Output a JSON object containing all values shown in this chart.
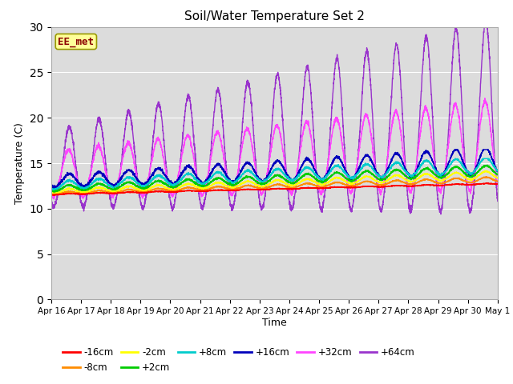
{
  "title": "Soil/Water Temperature Set 2",
  "xlabel": "Time",
  "ylabel": "Temperature (C)",
  "annotation_text": "EE_met",
  "annotation_color": "#8B0000",
  "annotation_bg": "#FFFF99",
  "annotation_border": "#999900",
  "ylim": [
    0,
    30
  ],
  "yticks": [
    0,
    5,
    10,
    15,
    20,
    25,
    30
  ],
  "bg_color": "#E8E8E8",
  "plot_bg_color": "#DCDCDC",
  "fig_color": "#FFFFFF",
  "xtick_labels": [
    "Apr 16",
    "Apr 17",
    "Apr 18",
    "Apr 19",
    "Apr 20",
    "Apr 21",
    "Apr 22",
    "Apr 23",
    "Apr 24",
    "Apr 25",
    "Apr 26",
    "Apr 27",
    "Apr 28",
    "Apr 29",
    "Apr 30",
    "May 1"
  ],
  "series_colors": {
    "-16cm": "#FF0000",
    "-8cm": "#FF8C00",
    "-2cm": "#FFFF00",
    "+2cm": "#00CC00",
    "+8cm": "#00CCCC",
    "+16cm": "#0000BB",
    "+32cm": "#FF44FF",
    "+64cm": "#9933CC"
  },
  "n_points": 3600
}
